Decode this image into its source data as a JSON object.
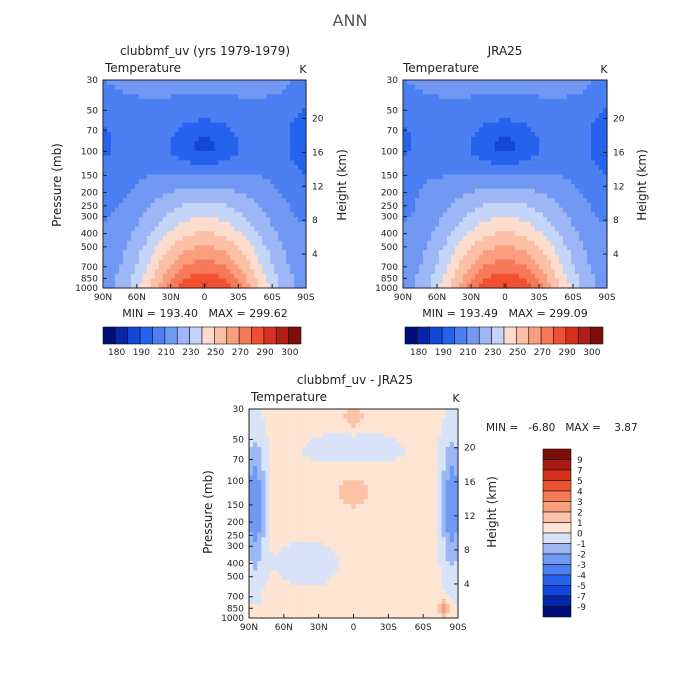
{
  "figure_title": "ANN",
  "chart_data": [
    {
      "type": "heatmap",
      "title": "clubbmf_uv (yrs 1979-1979)",
      "field_label": "Temperature",
      "units": "K",
      "ylabel": "Pressure (mb)",
      "ylabel_right": "Height (km)",
      "xticks": [
        "90N",
        "60N",
        "30N",
        "0",
        "30S",
        "60S",
        "90S"
      ],
      "yticks": [
        "30",
        "50",
        "70",
        "100",
        "150",
        "200",
        "250",
        "300",
        "400",
        "500",
        "700",
        "850",
        "1000"
      ],
      "height_ticks": [
        "20",
        "16",
        "12",
        "8",
        "4"
      ],
      "stats": "MIN = 193.40   MAX = 299.62",
      "min": 193.4,
      "max": 299.62,
      "colorbar_labels": [
        "180",
        "190",
        "210",
        "230",
        "250",
        "270",
        "290",
        "300"
      ]
    },
    {
      "type": "heatmap",
      "title": "JRA25",
      "field_label": "Temperature",
      "units": "K",
      "ylabel": "Pressure (mb)",
      "ylabel_right": "Height (km)",
      "xticks": [
        "90N",
        "60N",
        "30N",
        "0",
        "30S",
        "60S",
        "90S"
      ],
      "yticks": [
        "30",
        "50",
        "70",
        "100",
        "150",
        "200",
        "250",
        "300",
        "400",
        "500",
        "700",
        "850",
        "1000"
      ],
      "height_ticks": [
        "20",
        "16",
        "12",
        "8",
        "4"
      ],
      "stats": "MIN = 193.49   MAX = 299.09",
      "min": 193.49,
      "max": 299.09,
      "colorbar_labels": [
        "180",
        "190",
        "210",
        "230",
        "250",
        "270",
        "290",
        "300"
      ]
    },
    {
      "type": "heatmap",
      "title": "clubbmf_uv - JRA25",
      "field_label": "Temperature",
      "units": "K",
      "ylabel": "Pressure (mb)",
      "ylabel_right": "Height (km)",
      "xticks": [
        "90N",
        "60N",
        "30N",
        "0",
        "30S",
        "60S",
        "90S"
      ],
      "yticks": [
        "30",
        "50",
        "70",
        "100",
        "150",
        "200",
        "250",
        "300",
        "400",
        "500",
        "700",
        "850",
        "1000"
      ],
      "height_ticks": [
        "20",
        "16",
        "12",
        "8",
        "4"
      ],
      "stats": "MIN =   -6.80   MAX =    3.87",
      "min": -6.8,
      "max": 3.87,
      "colorbar_labels": [
        "9",
        "7",
        "5",
        "4",
        "3",
        "2",
        "1",
        "0",
        "-1",
        "-2",
        "-3",
        "-4",
        "-5",
        "-7",
        "-9"
      ]
    }
  ],
  "palettes": {
    "absolute": [
      "#000e7a",
      "#0625a8",
      "#1247d9",
      "#2563ee",
      "#4b7ff2",
      "#7199f4",
      "#9cb6f6",
      "#c4d5f7",
      "#fbdccd",
      "#fbc0a6",
      "#fa9e7f",
      "#f77a58",
      "#f0502f",
      "#d8301e",
      "#b01e16",
      "#7e0e0b"
    ],
    "difference": [
      "#000e7a",
      "#0625a8",
      "#1247d9",
      "#2563ee",
      "#4b7ff2",
      "#7199f4",
      "#9cb6f6",
      "#d8e3f8",
      "#fde4d3",
      "#fbc2a5",
      "#f89f7d",
      "#f57b56",
      "#ee5230",
      "#d4301b",
      "#a81b12",
      "#7e0e0b"
    ]
  }
}
